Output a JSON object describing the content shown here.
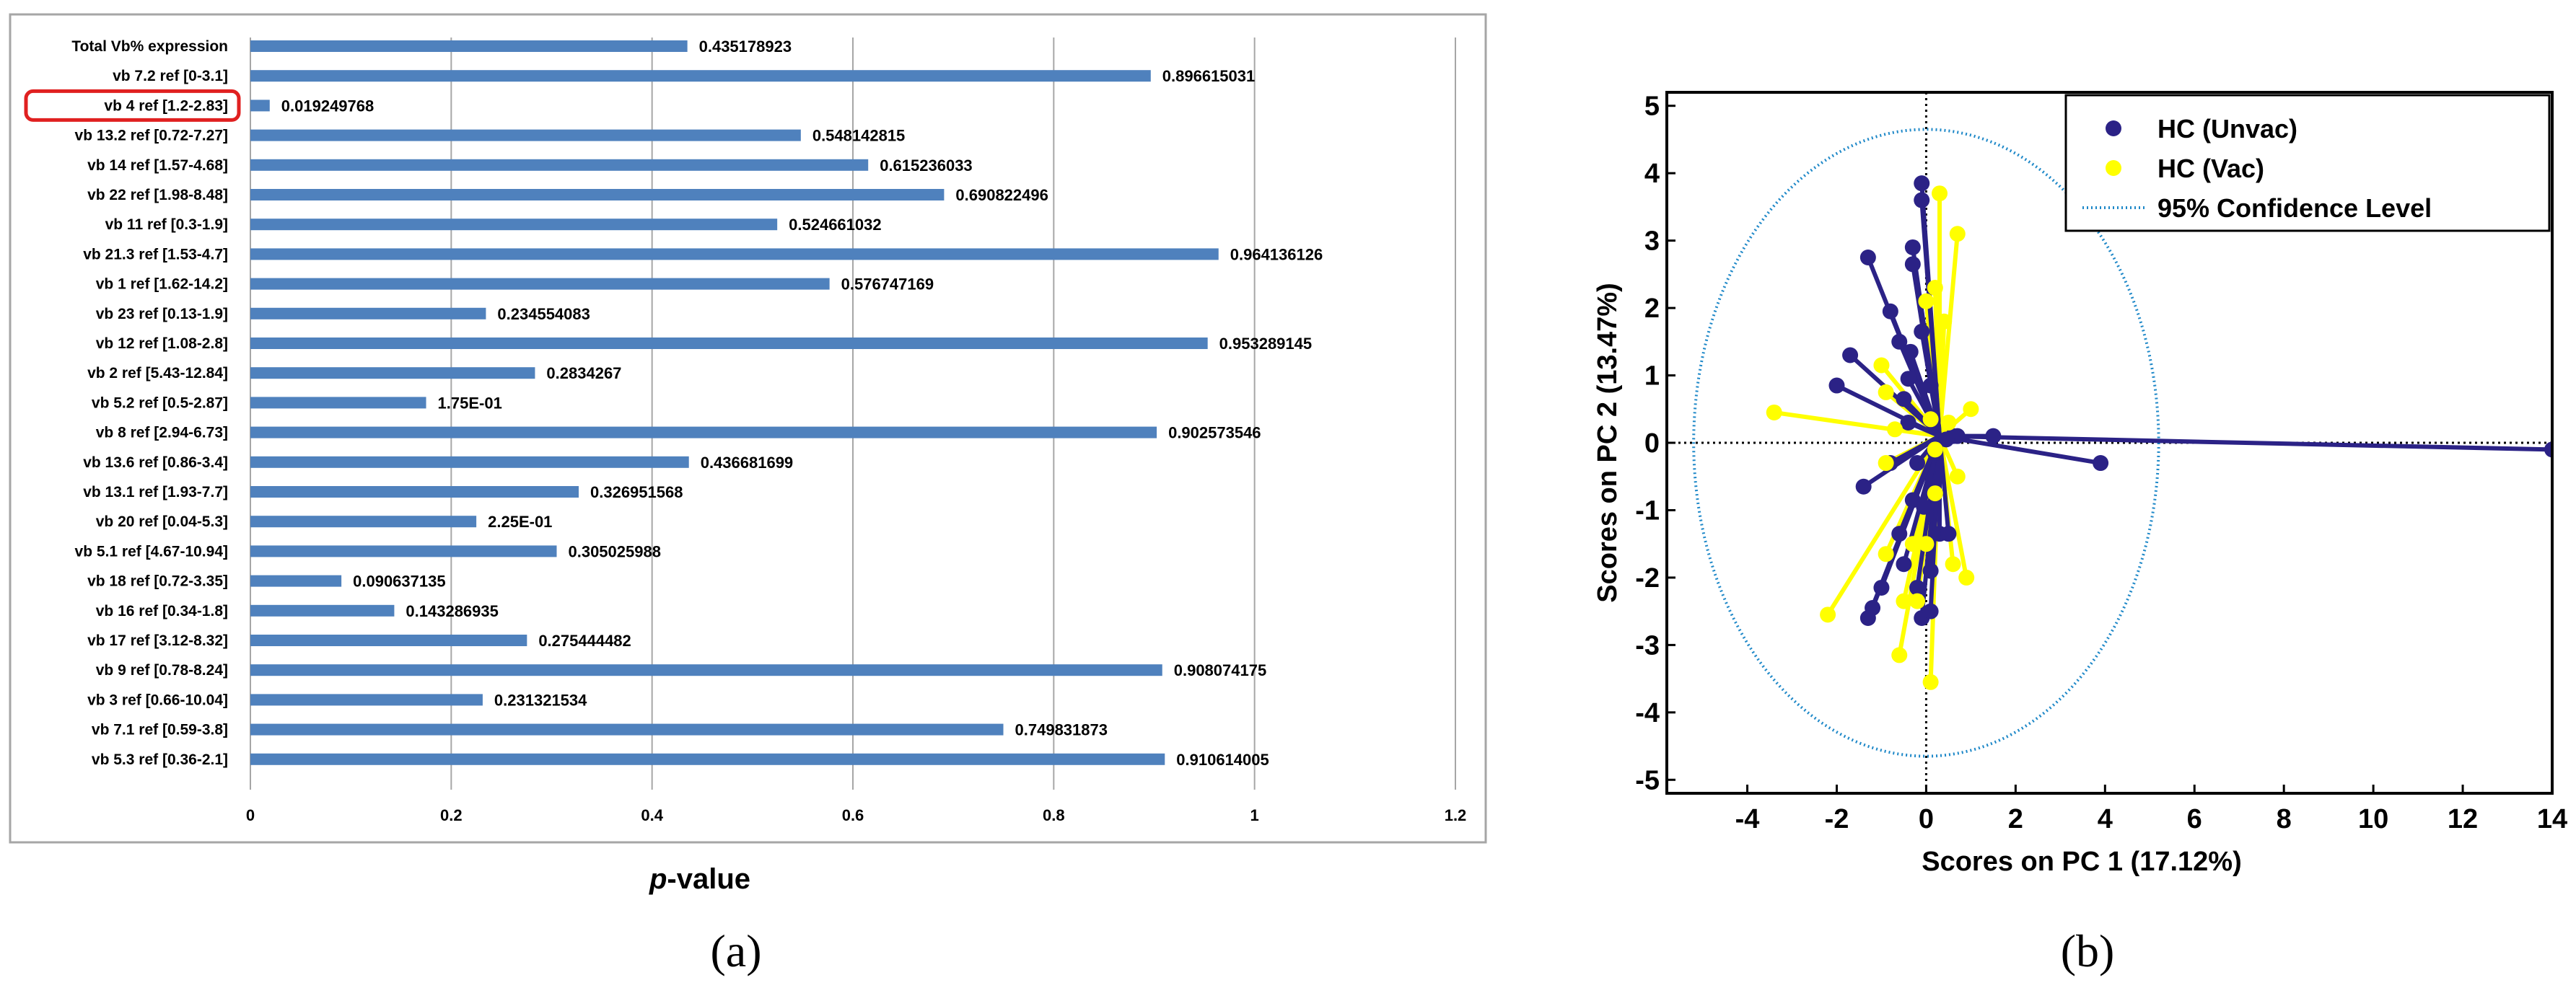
{
  "chart_data": [
    {
      "panel": "(a)",
      "type": "bar",
      "orientation": "horizontal",
      "xlabel": "p-value",
      "xlabel_italic_part": "p",
      "xlabel_rest": "-value",
      "xlim": [
        0,
        1.2
      ],
      "xticks": [
        0,
        0.2,
        0.4,
        0.6,
        0.8,
        1,
        1.2
      ],
      "xtick_labels": [
        "0",
        "0.2",
        "0.4",
        "0.6",
        "0.8",
        "1",
        "1.2"
      ],
      "highlighted_category": "vb 4  ref [1.2-2.83]",
      "highlight_color": "#e02020",
      "bar_color": "#4f81bd",
      "categories": [
        "Total Vb% expression",
        "vb 7.2  ref [0-3.1]",
        "vb 4  ref [1.2-2.83]",
        "vb 13.2  ref [0.72-7.27]",
        "vb 14  ref [1.57-4.68]",
        "vb 22  ref [1.98-8.48]",
        "vb 11  ref [0.3-1.9]",
        "vb 21.3  ref [1.53-4.7]",
        "vb 1  ref [1.62-14.2]",
        "vb 23  ref [0.13-1.9]",
        "vb 12  ref [1.08-2.8]",
        "vb 2  ref [5.43-12.84]",
        "vb 5.2  ref [0.5-2.87]",
        "vb 8  ref [2.94-6.73]",
        "vb 13.6  ref [0.86-3.4]",
        "vb 13.1  ref [1.93-7.7]",
        "vb 20  ref [0.04-5.3]",
        "vb 5.1 ref [4.67-10.94]",
        "vb 18 ref [0.72-3.35]",
        "vb 16  ref [0.34-1.8]",
        "vb 17  ref [3.12-8.32]",
        "vb 9  ref [0.78-8.24]",
        "vb 3  ref [0.66-10.04]",
        "vb 7.1  ref [0.59-3.8]",
        "vb 5.3  ref [0.36-2.1]"
      ],
      "values": [
        0.435178923,
        0.896615031,
        0.019249768,
        0.548142815,
        0.615236033,
        0.690822496,
        0.524661032,
        0.964136126,
        0.576747169,
        0.234554083,
        0.953289145,
        0.2834267,
        0.175,
        0.902573546,
        0.436681699,
        0.326951568,
        0.225,
        0.305025988,
        0.090637135,
        0.143286935,
        0.275444482,
        0.908074175,
        0.231321534,
        0.749831873,
        0.910614005
      ],
      "value_labels": [
        "0.435178923",
        "0.896615031",
        "0.019249768",
        "0.548142815",
        "0.615236033",
        "0.690822496",
        "0.524661032",
        "0.964136126",
        "0.576747169",
        "0.234554083",
        "0.953289145",
        "0.2834267",
        "1.75E-01",
        "0.902573546",
        "0.436681699",
        "0.326951568",
        "2.25E-01",
        "0.305025988",
        "0.090637135",
        "0.143286935",
        "0.275444482",
        "0.908074175",
        "0.231321534",
        "0.749831873",
        "0.910614005"
      ]
    },
    {
      "panel": "(b)",
      "type": "scatter",
      "subtype": "PCA score plot with star connections to centroid",
      "xlabel": "Scores on PC 1 (17.12%)",
      "ylabel": "Scores on PC 2 (13.47%)",
      "xlim": [
        -5.8,
        14
      ],
      "ylim": [
        -5.2,
        5.2
      ],
      "xticks": [
        -4,
        -2,
        0,
        2,
        4,
        6,
        8,
        10,
        12,
        14
      ],
      "yticks": [
        -5,
        -4,
        -3,
        -2,
        -1,
        0,
        1,
        2,
        3,
        4,
        5
      ],
      "centroid": [
        0.3,
        0.1
      ],
      "confidence_ellipse": {
        "label": "95% Confidence Level",
        "center": [
          0,
          0
        ],
        "semi_axis_x": 5.2,
        "semi_axis_y": 4.65,
        "color": "#1e88c8"
      },
      "legend_position": "top-right",
      "series": [
        {
          "name": "HC (Unvac)",
          "color": "#2b2286",
          "points": [
            [
              -0.1,
              3.85
            ],
            [
              -0.3,
              2.9
            ],
            [
              -0.1,
              3.6
            ],
            [
              -0.3,
              2.65
            ],
            [
              -1.3,
              2.75
            ],
            [
              -0.8,
              1.95
            ],
            [
              -0.6,
              1.5
            ],
            [
              -0.35,
              1.35
            ],
            [
              -1.7,
              1.3
            ],
            [
              -2.0,
              0.85
            ],
            [
              -0.1,
              1.65
            ],
            [
              -0.4,
              0.95
            ],
            [
              0.1,
              0.85
            ],
            [
              -0.5,
              0.65
            ],
            [
              1.5,
              0.1
            ],
            [
              3.9,
              -0.3
            ],
            [
              14.0,
              -0.1
            ],
            [
              0.6,
              0.1
            ],
            [
              0.2,
              -0.15
            ],
            [
              -1.4,
              -0.65
            ],
            [
              -0.8,
              -0.3
            ],
            [
              -0.3,
              -0.85
            ],
            [
              -0.6,
              -1.35
            ],
            [
              -0.5,
              -1.8
            ],
            [
              0.3,
              -1.35
            ],
            [
              0.1,
              -1.9
            ],
            [
              -0.2,
              -2.15
            ],
            [
              -1.0,
              -2.15
            ],
            [
              -1.2,
              -2.45
            ],
            [
              -1.3,
              -2.6
            ],
            [
              -0.1,
              -2.6
            ],
            [
              0.1,
              -2.5
            ],
            [
              0.5,
              -1.35
            ],
            [
              0.7,
              0.1
            ],
            [
              -0.2,
              -0.3
            ],
            [
              -0.05,
              -0.95
            ],
            [
              -0.4,
              0.3
            ],
            [
              0.45,
              0.05
            ]
          ]
        },
        {
          "name": "HC (Vac)",
          "color": "#ffff00",
          "points": [
            [
              0.3,
              3.7
            ],
            [
              0.7,
              3.1
            ],
            [
              0.2,
              2.3
            ],
            [
              0.0,
              2.1
            ],
            [
              0.4,
              1.8
            ],
            [
              -1.0,
              1.15
            ],
            [
              -0.9,
              0.75
            ],
            [
              1.0,
              0.5
            ],
            [
              -3.4,
              0.45
            ],
            [
              0.1,
              0.35
            ],
            [
              -0.7,
              0.2
            ],
            [
              -2.2,
              -2.55
            ],
            [
              -0.9,
              -1.65
            ],
            [
              -0.3,
              -1.5
            ],
            [
              0.6,
              -1.8
            ],
            [
              0.9,
              -2.0
            ],
            [
              0.7,
              -0.5
            ],
            [
              0.2,
              -0.75
            ],
            [
              -0.5,
              -2.35
            ],
            [
              -0.2,
              -2.35
            ],
            [
              -0.6,
              -3.15
            ],
            [
              0.1,
              -3.55
            ],
            [
              0.0,
              -1.5
            ],
            [
              -0.9,
              -0.3
            ],
            [
              0.2,
              -0.1
            ],
            [
              0.5,
              0.3
            ]
          ]
        }
      ]
    }
  ]
}
